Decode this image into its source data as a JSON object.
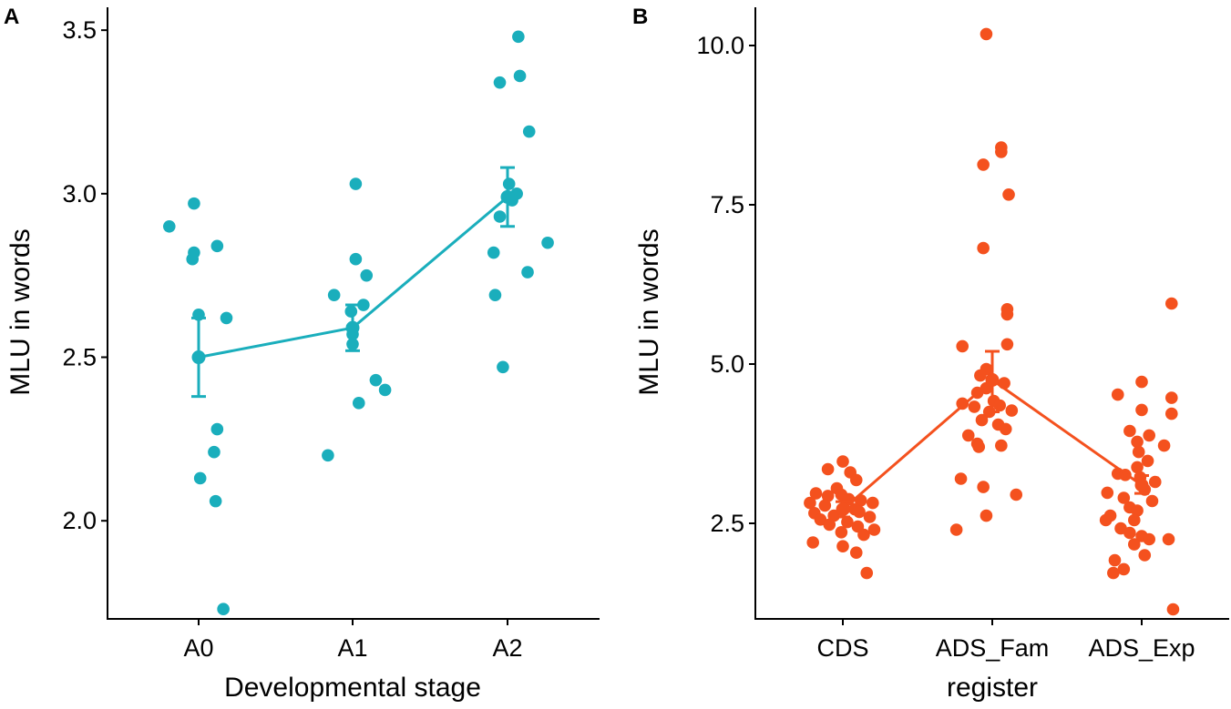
{
  "chart_data": [
    {
      "type": "scatter",
      "panel": "A",
      "xlabel": "Developmental stage",
      "ylabel": "MLU in words",
      "categories": [
        "A0",
        "A1",
        "A2"
      ],
      "ylim": [
        1.7,
        3.57
      ],
      "yticks": [
        2.0,
        2.5,
        3.0,
        3.5
      ],
      "ytick_labels": [
        "2.0",
        "2.5",
        "3.0",
        "3.5"
      ],
      "color": "#1AAEBC",
      "points": [
        {
          "cat": 0,
          "jitter": -0.19,
          "y": 2.9
        },
        {
          "cat": 0,
          "jitter": -0.03,
          "y": 2.97
        },
        {
          "cat": 0,
          "jitter": -0.03,
          "y": 2.82
        },
        {
          "cat": 0,
          "jitter": -0.04,
          "y": 2.8
        },
        {
          "cat": 0,
          "jitter": 0.12,
          "y": 2.84
        },
        {
          "cat": 0,
          "jitter": 0.0,
          "y": 2.63
        },
        {
          "cat": 0,
          "jitter": 0.18,
          "y": 2.62
        },
        {
          "cat": 0,
          "jitter": 0.12,
          "y": 2.28
        },
        {
          "cat": 0,
          "jitter": 0.1,
          "y": 2.21
        },
        {
          "cat": 0,
          "jitter": 0.01,
          "y": 2.13
        },
        {
          "cat": 0,
          "jitter": 0.11,
          "y": 2.06
        },
        {
          "cat": 0,
          "jitter": 0.16,
          "y": 1.73
        },
        {
          "cat": 1,
          "jitter": 0.02,
          "y": 3.03
        },
        {
          "cat": 1,
          "jitter": 0.02,
          "y": 2.8
        },
        {
          "cat": 1,
          "jitter": 0.09,
          "y": 2.75
        },
        {
          "cat": 1,
          "jitter": -0.12,
          "y": 2.69
        },
        {
          "cat": 1,
          "jitter": 0.07,
          "y": 2.66
        },
        {
          "cat": 1,
          "jitter": -0.01,
          "y": 2.64
        },
        {
          "cat": 1,
          "jitter": 0.0,
          "y": 2.57
        },
        {
          "cat": 1,
          "jitter": 0.0,
          "y": 2.54
        },
        {
          "cat": 1,
          "jitter": 0.15,
          "y": 2.43
        },
        {
          "cat": 1,
          "jitter": 0.21,
          "y": 2.4
        },
        {
          "cat": 1,
          "jitter": 0.04,
          "y": 2.36
        },
        {
          "cat": 1,
          "jitter": -0.16,
          "y": 2.2
        },
        {
          "cat": 2,
          "jitter": 0.07,
          "y": 3.48
        },
        {
          "cat": 2,
          "jitter": 0.08,
          "y": 3.36
        },
        {
          "cat": 2,
          "jitter": -0.05,
          "y": 3.34
        },
        {
          "cat": 2,
          "jitter": 0.14,
          "y": 3.19
        },
        {
          "cat": 2,
          "jitter": 0.01,
          "y": 3.03
        },
        {
          "cat": 2,
          "jitter": 0.06,
          "y": 3.0
        },
        {
          "cat": 2,
          "jitter": 0.03,
          "y": 2.98
        },
        {
          "cat": 2,
          "jitter": -0.05,
          "y": 2.93
        },
        {
          "cat": 2,
          "jitter": 0.26,
          "y": 2.85
        },
        {
          "cat": 2,
          "jitter": -0.09,
          "y": 2.82
        },
        {
          "cat": 2,
          "jitter": 0.13,
          "y": 2.76
        },
        {
          "cat": 2,
          "jitter": -0.08,
          "y": 2.69
        },
        {
          "cat": 2,
          "jitter": -0.03,
          "y": 2.47
        }
      ],
      "means": [
        2.5,
        2.59,
        2.99
      ],
      "error_bars": [
        [
          2.38,
          2.62
        ],
        [
          2.52,
          2.66
        ],
        [
          2.9,
          3.08
        ]
      ]
    },
    {
      "type": "scatter",
      "panel": "B",
      "xlabel": "register",
      "ylabel": "MLU in words",
      "categories": [
        "CDS",
        "ADS_Fam",
        "ADS_Exp"
      ],
      "ylim": [
        1.0,
        10.6
      ],
      "yticks": [
        2.5,
        5.0,
        7.5,
        10.0
      ],
      "ytick_labels": [
        "2.5",
        "5.0",
        "7.5",
        "10.0"
      ],
      "color": "#F4511E",
      "points": [
        {
          "cat": 0,
          "jitter": 0.0,
          "y": 3.47
        },
        {
          "cat": 0,
          "jitter": -0.1,
          "y": 3.35
        },
        {
          "cat": 0,
          "jitter": 0.05,
          "y": 3.3
        },
        {
          "cat": 0,
          "jitter": 0.09,
          "y": 3.18
        },
        {
          "cat": 0,
          "jitter": -0.04,
          "y": 3.05
        },
        {
          "cat": 0,
          "jitter": -0.18,
          "y": 2.97
        },
        {
          "cat": 0,
          "jitter": -0.1,
          "y": 2.93
        },
        {
          "cat": 0,
          "jitter": -0.01,
          "y": 2.95
        },
        {
          "cat": 0,
          "jitter": 0.04,
          "y": 2.88
        },
        {
          "cat": 0,
          "jitter": 0.12,
          "y": 2.86
        },
        {
          "cat": 0,
          "jitter": 0.2,
          "y": 2.82
        },
        {
          "cat": 0,
          "jitter": -0.22,
          "y": 2.82
        },
        {
          "cat": 0,
          "jitter": -0.12,
          "y": 2.78
        },
        {
          "cat": 0,
          "jitter": 0.01,
          "y": 2.73
        },
        {
          "cat": 0,
          "jitter": 0.08,
          "y": 2.72
        },
        {
          "cat": 0,
          "jitter": -0.19,
          "y": 2.66
        },
        {
          "cat": 0,
          "jitter": -0.06,
          "y": 2.62
        },
        {
          "cat": 0,
          "jitter": 0.11,
          "y": 2.68
        },
        {
          "cat": 0,
          "jitter": 0.18,
          "y": 2.6
        },
        {
          "cat": 0,
          "jitter": -0.15,
          "y": 2.56
        },
        {
          "cat": 0,
          "jitter": 0.03,
          "y": 2.52
        },
        {
          "cat": 0,
          "jitter": -0.09,
          "y": 2.48
        },
        {
          "cat": 0,
          "jitter": 0.1,
          "y": 2.45
        },
        {
          "cat": 0,
          "jitter": 0.21,
          "y": 2.4
        },
        {
          "cat": 0,
          "jitter": -0.01,
          "y": 2.36
        },
        {
          "cat": 0,
          "jitter": 0.14,
          "y": 2.32
        },
        {
          "cat": 0,
          "jitter": -0.2,
          "y": 2.2
        },
        {
          "cat": 0,
          "jitter": 0.0,
          "y": 2.14
        },
        {
          "cat": 0,
          "jitter": 0.09,
          "y": 2.04
        },
        {
          "cat": 0,
          "jitter": 0.16,
          "y": 1.72
        },
        {
          "cat": 1,
          "jitter": -0.04,
          "y": 10.18
        },
        {
          "cat": 1,
          "jitter": 0.06,
          "y": 8.4
        },
        {
          "cat": 1,
          "jitter": 0.06,
          "y": 8.33
        },
        {
          "cat": 1,
          "jitter": -0.06,
          "y": 8.13
        },
        {
          "cat": 1,
          "jitter": 0.11,
          "y": 7.66
        },
        {
          "cat": 1,
          "jitter": -0.06,
          "y": 6.82
        },
        {
          "cat": 1,
          "jitter": 0.1,
          "y": 5.86
        },
        {
          "cat": 1,
          "jitter": 0.1,
          "y": 5.78
        },
        {
          "cat": 1,
          "jitter": 0.1,
          "y": 5.31
        },
        {
          "cat": 1,
          "jitter": -0.2,
          "y": 5.28
        },
        {
          "cat": 1,
          "jitter": -0.04,
          "y": 4.92
        },
        {
          "cat": 1,
          "jitter": -0.08,
          "y": 4.82
        },
        {
          "cat": 1,
          "jitter": 0.0,
          "y": 4.76
        },
        {
          "cat": 1,
          "jitter": 0.08,
          "y": 4.7
        },
        {
          "cat": 1,
          "jitter": -0.04,
          "y": 4.62
        },
        {
          "cat": 1,
          "jitter": -0.1,
          "y": 4.55
        },
        {
          "cat": 1,
          "jitter": 0.01,
          "y": 4.42
        },
        {
          "cat": 1,
          "jitter": -0.2,
          "y": 4.38
        },
        {
          "cat": 1,
          "jitter": -0.12,
          "y": 4.33
        },
        {
          "cat": 1,
          "jitter": 0.05,
          "y": 4.35
        },
        {
          "cat": 1,
          "jitter": 0.13,
          "y": 4.27
        },
        {
          "cat": 1,
          "jitter": -0.02,
          "y": 4.25
        },
        {
          "cat": 1,
          "jitter": -0.07,
          "y": 4.12
        },
        {
          "cat": 1,
          "jitter": 0.04,
          "y": 4.05
        },
        {
          "cat": 1,
          "jitter": 0.09,
          "y": 3.98
        },
        {
          "cat": 1,
          "jitter": -0.16,
          "y": 3.88
        },
        {
          "cat": 1,
          "jitter": -0.1,
          "y": 3.75
        },
        {
          "cat": 1,
          "jitter": -0.09,
          "y": 3.7
        },
        {
          "cat": 1,
          "jitter": 0.06,
          "y": 3.72
        },
        {
          "cat": 1,
          "jitter": -0.21,
          "y": 3.2
        },
        {
          "cat": 1,
          "jitter": -0.06,
          "y": 3.07
        },
        {
          "cat": 1,
          "jitter": 0.16,
          "y": 2.95
        },
        {
          "cat": 1,
          "jitter": -0.04,
          "y": 2.62
        },
        {
          "cat": 1,
          "jitter": -0.24,
          "y": 2.4
        },
        {
          "cat": 2,
          "jitter": 0.2,
          "y": 5.95
        },
        {
          "cat": 2,
          "jitter": 0.0,
          "y": 4.72
        },
        {
          "cat": 2,
          "jitter": -0.16,
          "y": 4.52
        },
        {
          "cat": 2,
          "jitter": 0.2,
          "y": 4.47
        },
        {
          "cat": 2,
          "jitter": 0.0,
          "y": 4.28
        },
        {
          "cat": 2,
          "jitter": 0.2,
          "y": 4.22
        },
        {
          "cat": 2,
          "jitter": -0.08,
          "y": 3.95
        },
        {
          "cat": 2,
          "jitter": 0.05,
          "y": 3.88
        },
        {
          "cat": 2,
          "jitter": -0.03,
          "y": 3.78
        },
        {
          "cat": 2,
          "jitter": 0.15,
          "y": 3.72
        },
        {
          "cat": 2,
          "jitter": -0.02,
          "y": 3.62
        },
        {
          "cat": 2,
          "jitter": 0.04,
          "y": 3.48
        },
        {
          "cat": 2,
          "jitter": -0.03,
          "y": 3.38
        },
        {
          "cat": 2,
          "jitter": -0.16,
          "y": 3.28
        },
        {
          "cat": 2,
          "jitter": -0.11,
          "y": 3.26
        },
        {
          "cat": 2,
          "jitter": -0.01,
          "y": 3.22
        },
        {
          "cat": 2,
          "jitter": 0.09,
          "y": 3.15
        },
        {
          "cat": 2,
          "jitter": 0.02,
          "y": 3.03
        },
        {
          "cat": 2,
          "jitter": -0.23,
          "y": 2.98
        },
        {
          "cat": 2,
          "jitter": -0.12,
          "y": 2.9
        },
        {
          "cat": 2,
          "jitter": 0.07,
          "y": 2.85
        },
        {
          "cat": 2,
          "jitter": -0.08,
          "y": 2.75
        },
        {
          "cat": 2,
          "jitter": -0.03,
          "y": 2.7
        },
        {
          "cat": 2,
          "jitter": -0.21,
          "y": 2.62
        },
        {
          "cat": 2,
          "jitter": -0.05,
          "y": 2.55
        },
        {
          "cat": 2,
          "jitter": -0.24,
          "y": 2.55
        },
        {
          "cat": 2,
          "jitter": -0.14,
          "y": 2.42
        },
        {
          "cat": 2,
          "jitter": -0.08,
          "y": 2.35
        },
        {
          "cat": 2,
          "jitter": 0.0,
          "y": 2.3
        },
        {
          "cat": 2,
          "jitter": 0.18,
          "y": 2.25
        },
        {
          "cat": 2,
          "jitter": 0.05,
          "y": 2.25
        },
        {
          "cat": 2,
          "jitter": -0.05,
          "y": 2.17
        },
        {
          "cat": 2,
          "jitter": 0.02,
          "y": 2.0
        },
        {
          "cat": 2,
          "jitter": -0.18,
          "y": 1.92
        },
        {
          "cat": 2,
          "jitter": -0.12,
          "y": 1.78
        },
        {
          "cat": 2,
          "jitter": -0.19,
          "y": 1.72
        },
        {
          "cat": 2,
          "jitter": 0.21,
          "y": 1.15
        }
      ],
      "means": [
        2.72,
        4.75,
        3.1
      ],
      "error_bars": [
        [
          2.6,
          2.84
        ],
        [
          4.25,
          5.2
        ],
        [
          2.97,
          3.25
        ]
      ]
    }
  ]
}
